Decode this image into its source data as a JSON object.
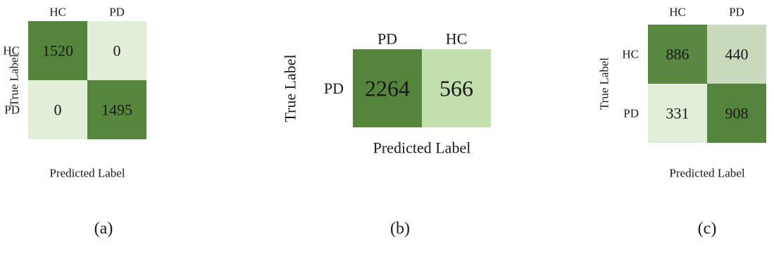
{
  "chart_data": [
    {
      "type": "heatmap",
      "panel_label": "(a)",
      "col_labels": [
        "HC",
        "PD"
      ],
      "row_labels": [
        "HC",
        "PD"
      ],
      "values": [
        [
          1520,
          0
        ],
        [
          0,
          1495
        ]
      ],
      "xlabel": "Predicted Label",
      "ylabel": "True Label",
      "xlabel_position": "bottom",
      "col_labels_position": "top",
      "colormap": {
        "low": "#e3eed8",
        "high": "#55843c"
      }
    },
    {
      "type": "heatmap",
      "panel_label": "(b)",
      "col_labels": [
        "PD",
        "HC"
      ],
      "row_labels": [
        "PD"
      ],
      "values": [
        [
          2264,
          566
        ]
      ],
      "xlabel": "Predicted Label",
      "ylabel": "True Label",
      "xlabel_position": "bottom",
      "col_labels_position": "top",
      "colormap": {
        "low": "#c3dfae",
        "high": "#55843c"
      }
    },
    {
      "type": "heatmap",
      "panel_label": "(c)",
      "col_labels": [
        "HC",
        "PD"
      ],
      "row_labels": [
        "HC",
        "PD"
      ],
      "values": [
        [
          886,
          440
        ],
        [
          331,
          908
        ]
      ],
      "xlabel": "Predicted Label",
      "ylabel": "True Label",
      "xlabel_position": "bottom",
      "col_labels_position": "top",
      "colormap": {
        "low": "#e3eed8",
        "high": "#55843c"
      }
    }
  ]
}
